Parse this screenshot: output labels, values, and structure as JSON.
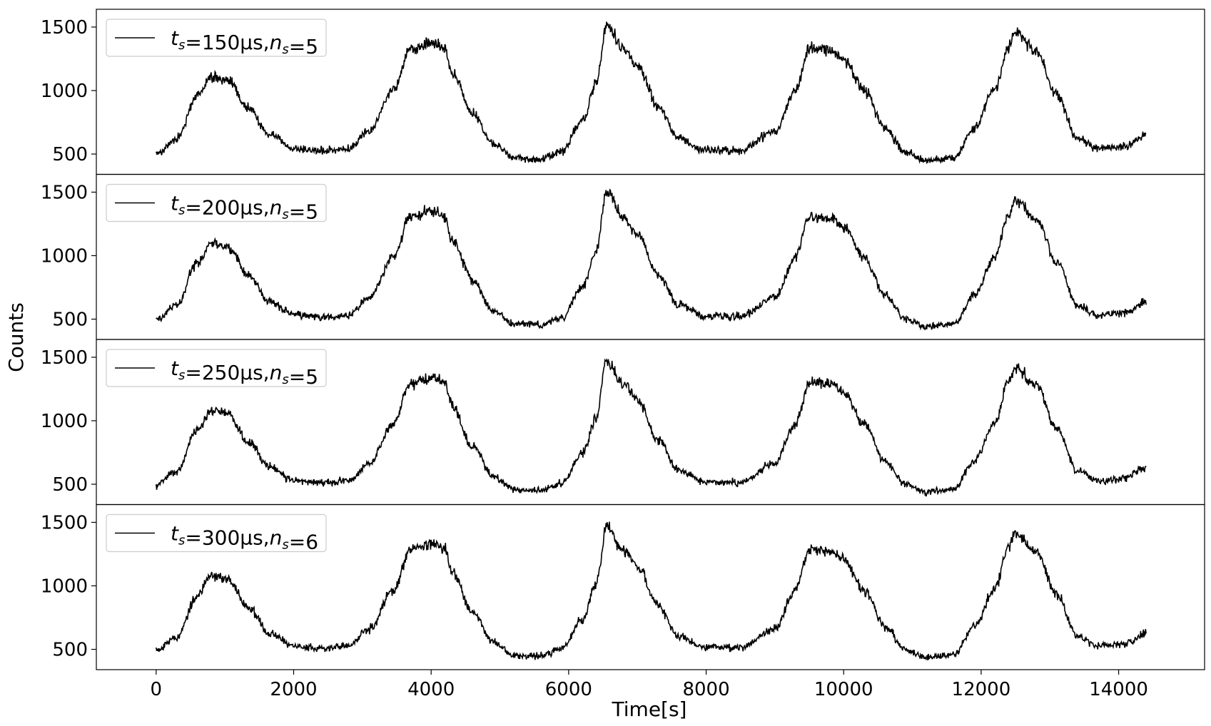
{
  "chart_data": {
    "type": "line",
    "xlabel": "Time[s]",
    "ylabel": "Counts",
    "xlim": [
      -870,
      15250
    ],
    "ylim": [
      340,
      1640
    ],
    "x_ticks": [
      0,
      2000,
      4000,
      6000,
      8000,
      10000,
      12000,
      14000
    ],
    "y_ticks": [
      500,
      1000,
      1500
    ],
    "x_tick_labels": [
      "0",
      "2000",
      "4000",
      "6000",
      "8000",
      "10000",
      "12000",
      "14000"
    ],
    "y_tick_labels": [
      "500",
      "1000",
      "1500"
    ],
    "grid": false,
    "legend_position": "top-left",
    "line_color": "#000000",
    "x_range": [
      0,
      14400
    ],
    "shared_x": true,
    "profile_points": [
      [
        0,
        500
      ],
      [
        300,
        620
      ],
      [
        600,
        960
      ],
      [
        800,
        1110
      ],
      [
        1050,
        1080
      ],
      [
        1350,
        850
      ],
      [
        1650,
        650
      ],
      [
        2000,
        545
      ],
      [
        2400,
        525
      ],
      [
        2800,
        540
      ],
      [
        3100,
        680
      ],
      [
        3450,
        1000
      ],
      [
        3700,
        1330
      ],
      [
        4000,
        1370
      ],
      [
        4200,
        1340
      ],
      [
        4300,
        1150
      ],
      [
        4600,
        820
      ],
      [
        4900,
        580
      ],
      [
        5200,
        470
      ],
      [
        5600,
        460
      ],
      [
        5900,
        520
      ],
      [
        6200,
        760
      ],
      [
        6400,
        1050
      ],
      [
        6550,
        1520
      ],
      [
        6800,
        1320
      ],
      [
        7000,
        1190
      ],
      [
        7300,
        870
      ],
      [
        7600,
        620
      ],
      [
        8000,
        530
      ],
      [
        8500,
        530
      ],
      [
        9000,
        680
      ],
      [
        9300,
        1000
      ],
      [
        9500,
        1330
      ],
      [
        9800,
        1320
      ],
      [
        10000,
        1250
      ],
      [
        10300,
        1000
      ],
      [
        10600,
        700
      ],
      [
        10900,
        510
      ],
      [
        11200,
        450
      ],
      [
        11600,
        470
      ],
      [
        11900,
        700
      ],
      [
        12200,
        1010
      ],
      [
        12400,
        1340
      ],
      [
        12500,
        1460
      ],
      [
        12800,
        1310
      ],
      [
        13100,
        960
      ],
      [
        13400,
        620
      ],
      [
        13700,
        540
      ],
      [
        14100,
        560
      ],
      [
        14400,
        650
      ]
    ],
    "series": [
      {
        "legend": {
          "t": "t",
          "t_sub": "s",
          "t_value": "=150μs,",
          "n": "n",
          "n_sub": "s",
          "n_value": "=5"
        },
        "noise": 40,
        "seed": 11,
        "scale": 1.0
      },
      {
        "legend": {
          "t": "t",
          "t_sub": "s",
          "t_value": "=200μs,",
          "n": "n",
          "n_sub": "s",
          "n_value": "=5"
        },
        "noise": 38,
        "seed": 23,
        "scale": 0.985
      },
      {
        "legend": {
          "t": "t",
          "t_sub": "s",
          "t_value": "=250μs,",
          "n": "n",
          "n_sub": "s",
          "n_value": "=5"
        },
        "noise": 38,
        "seed": 37,
        "scale": 0.975
      },
      {
        "legend": {
          "t": "t",
          "t_sub": "s",
          "t_value": "=300μs,",
          "n": "n",
          "n_sub": "s",
          "n_value": "=6"
        },
        "noise": 38,
        "seed": 53,
        "scale": 0.97
      }
    ]
  }
}
